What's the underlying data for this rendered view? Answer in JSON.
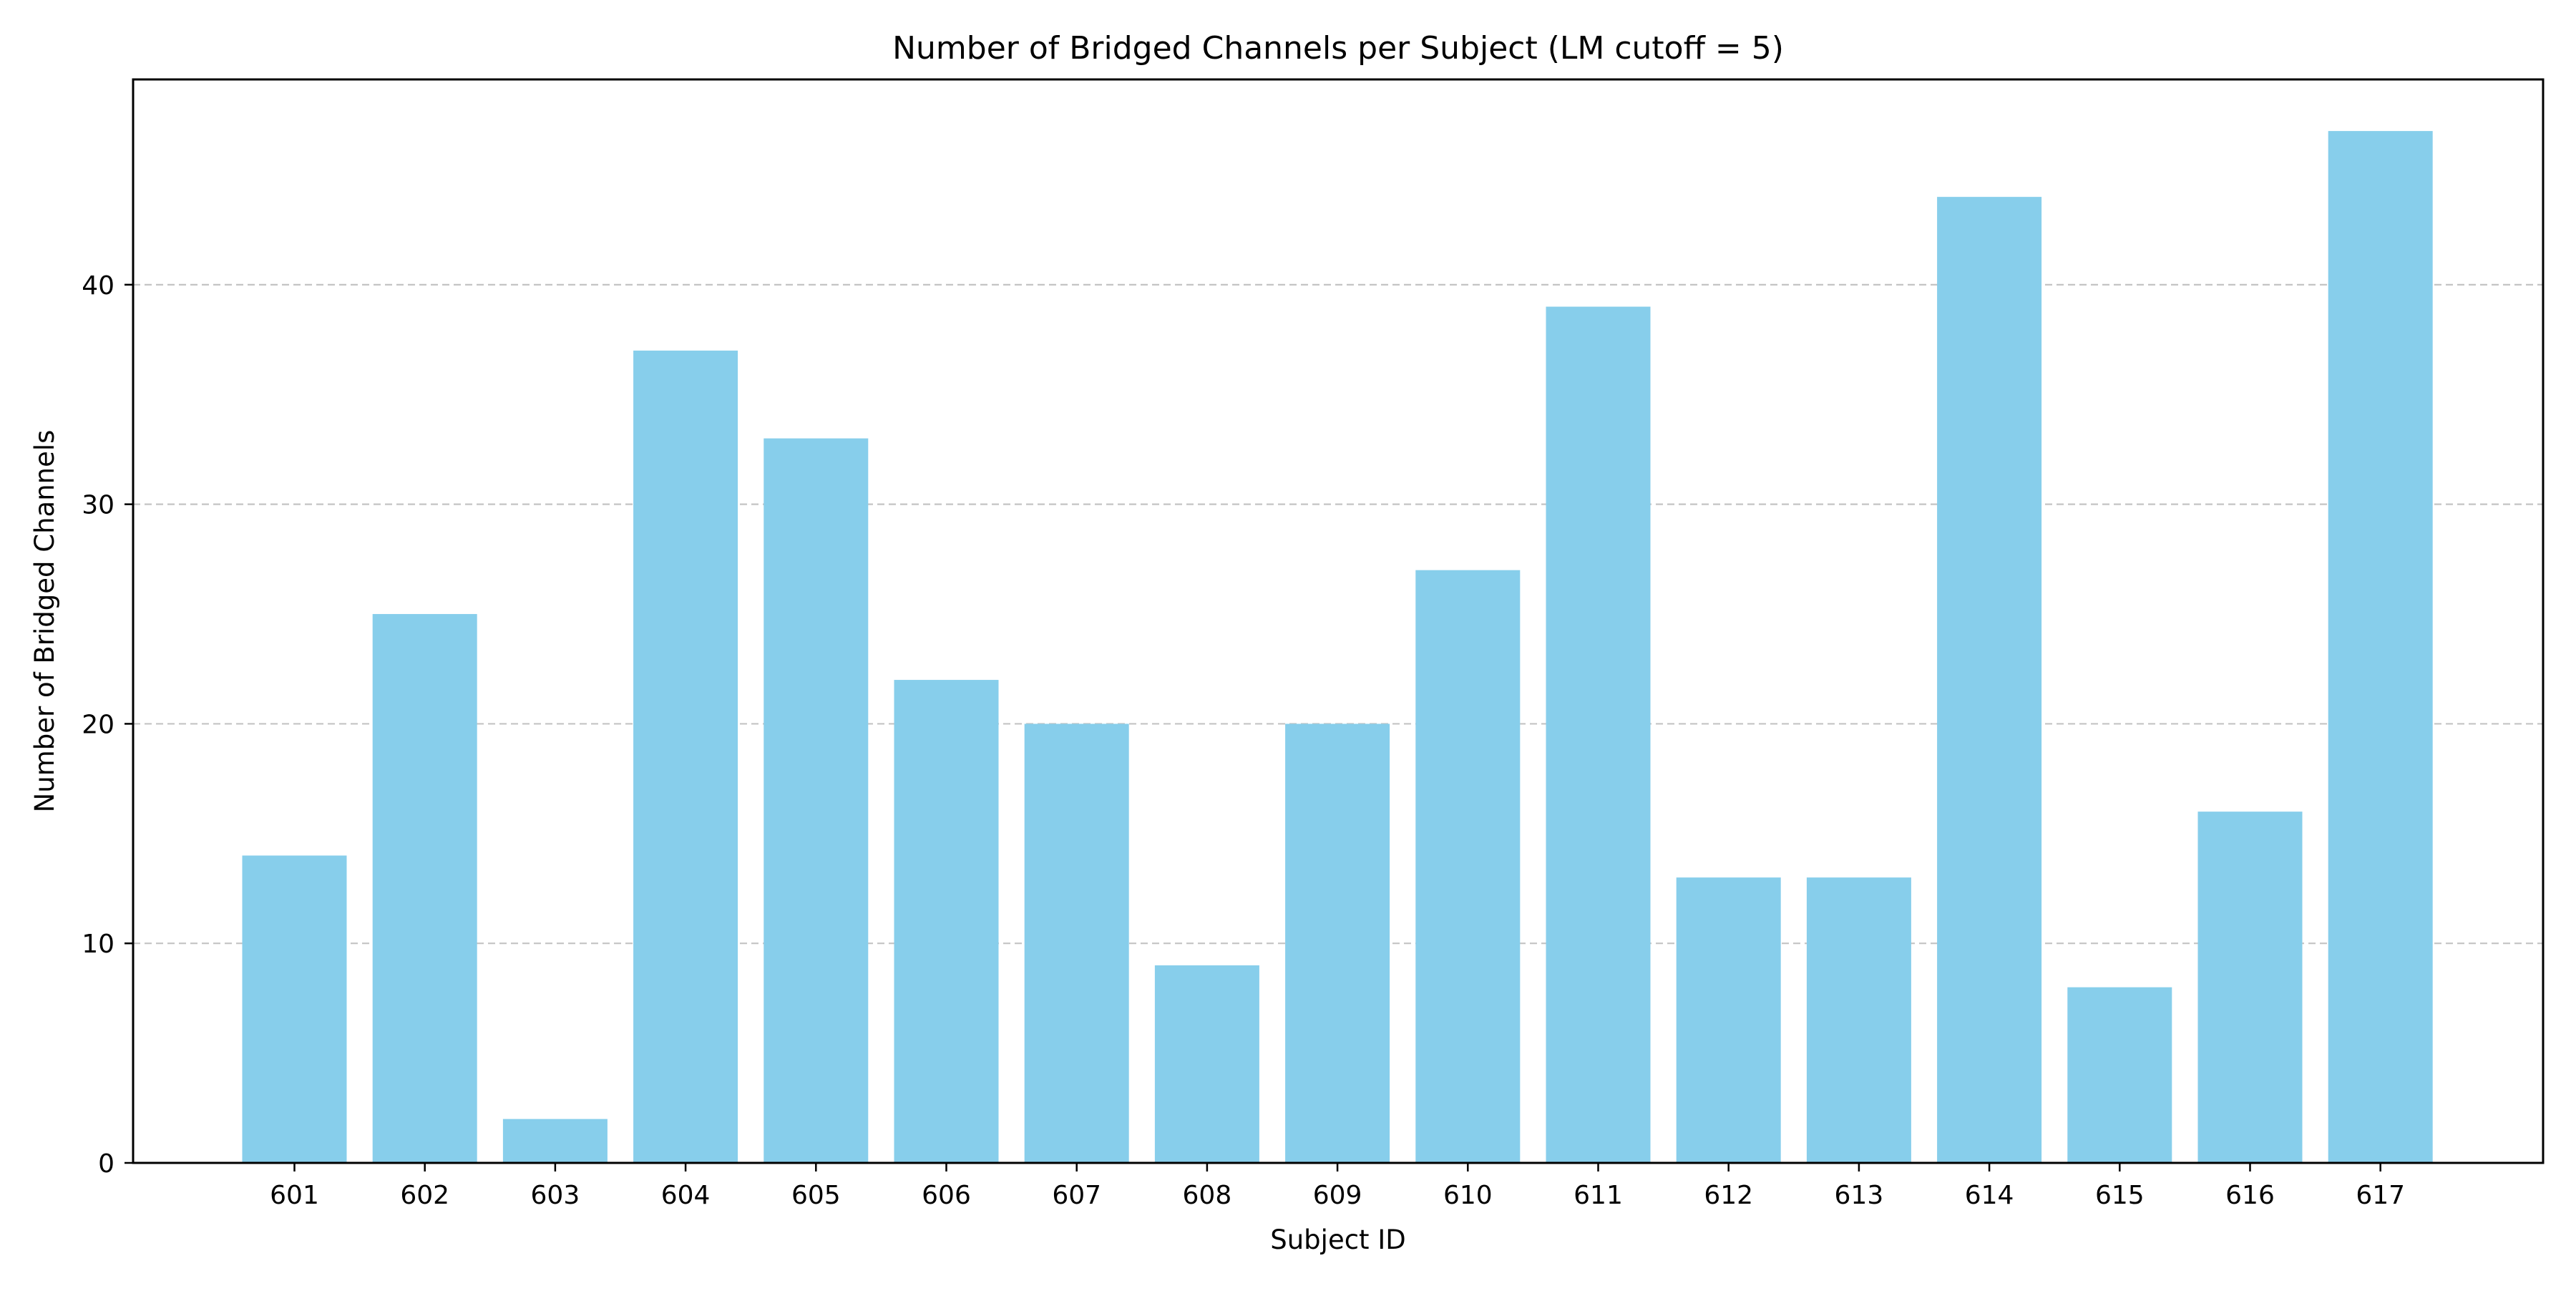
{
  "chart_data": {
    "type": "bar",
    "title": "Number of Bridged Channels per Subject (LM cutoff = 5)",
    "xlabel": "Subject ID",
    "ylabel": "Number of Bridged Channels",
    "categories": [
      "601",
      "602",
      "603",
      "604",
      "605",
      "606",
      "607",
      "608",
      "609",
      "610",
      "611",
      "612",
      "613",
      "614",
      "615",
      "616",
      "617"
    ],
    "values": [
      14,
      25,
      2,
      37,
      33,
      22,
      20,
      9,
      20,
      27,
      39,
      13,
      13,
      44,
      8,
      16,
      47
    ],
    "ylim": [
      0,
      49.35
    ],
    "yticks": [
      0,
      10,
      20,
      30,
      40
    ],
    "ytick_labels": [
      "0",
      "10",
      "20",
      "30",
      "40"
    ],
    "grid": "y-dashed",
    "legend": "none",
    "colors": {
      "bar": "#87ceeb",
      "grid": "#c4c4c4",
      "axis": "#000000"
    }
  }
}
